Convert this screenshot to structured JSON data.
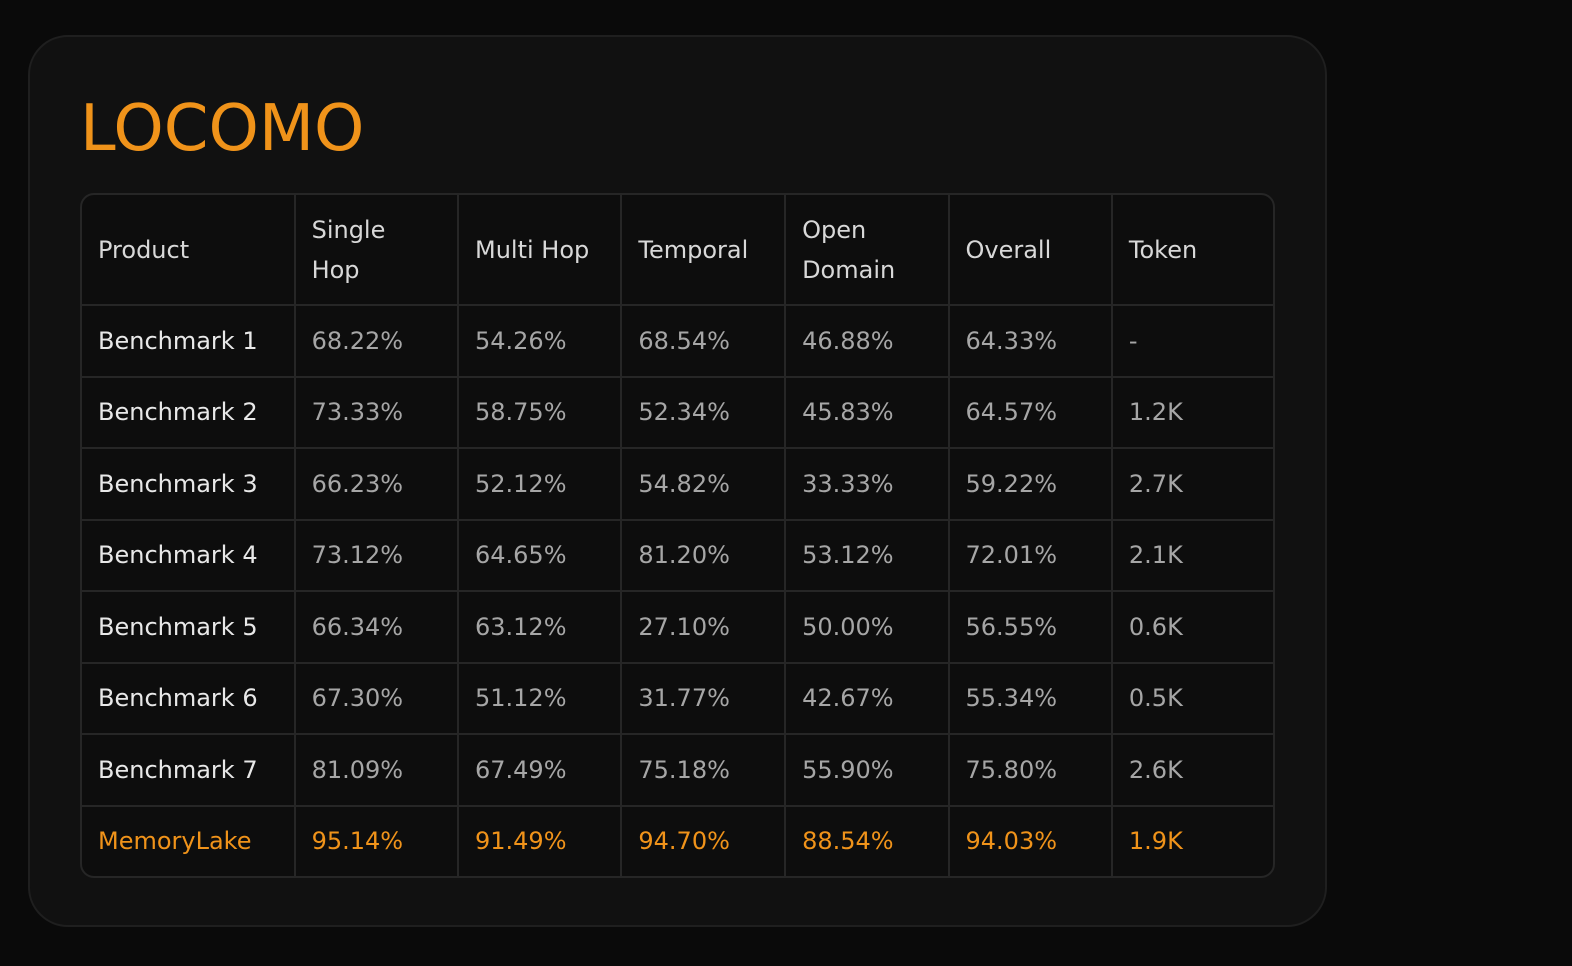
{
  "title": "LOCOMO",
  "table": {
    "headers": [
      "Product",
      "Single\nHop",
      "Multi Hop",
      "Temporal",
      "Open\nDomain",
      "Overall",
      "Token"
    ],
    "rows": [
      [
        "Benchmark 1",
        "68.22%",
        "54.26%",
        "68.54%",
        "46.88%",
        "64.33%",
        "-"
      ],
      [
        "Benchmark 2",
        "73.33%",
        "58.75%",
        "52.34%",
        "45.83%",
        "64.57%",
        "1.2K"
      ],
      [
        "Benchmark 3",
        "66.23%",
        "52.12%",
        "54.82%",
        "33.33%",
        "59.22%",
        "2.7K"
      ],
      [
        "Benchmark 4",
        "73.12%",
        "64.65%",
        "81.20%",
        "53.12%",
        "72.01%",
        "2.1K"
      ],
      [
        "Benchmark 5",
        "66.34%",
        "63.12%",
        "27.10%",
        "50.00%",
        "56.55%",
        "0.6K"
      ],
      [
        "Benchmark 6",
        "67.30%",
        "51.12%",
        "31.77%",
        "42.67%",
        "55.34%",
        "0.5K"
      ],
      [
        "Benchmark 7",
        "81.09%",
        "67.49%",
        "75.18%",
        "55.90%",
        "75.80%",
        "2.6K"
      ],
      [
        "MemoryLake",
        "95.14%",
        "91.49%",
        "94.70%",
        "88.54%",
        "94.03%",
        "1.9K"
      ]
    ]
  }
}
